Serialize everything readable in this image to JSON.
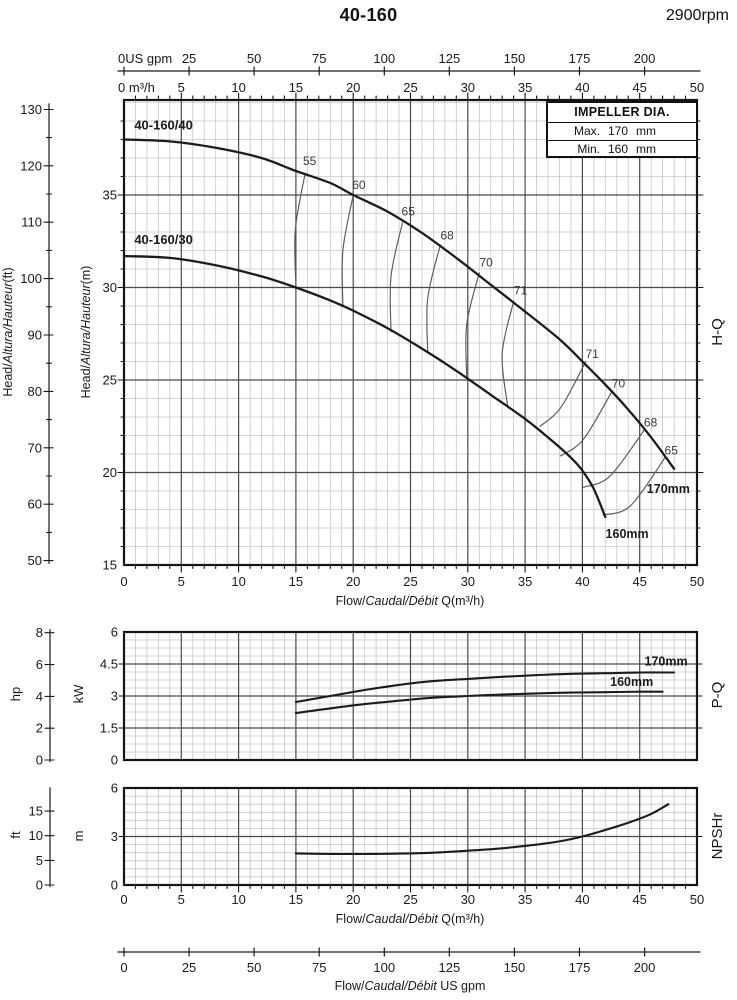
{
  "header": {
    "title": "40-160",
    "rpm": "2900rpm"
  },
  "impeller_box": {
    "title": "IMPELLER DIA.",
    "rows": [
      {
        "label": "Max.",
        "value": "170",
        "unit": "mm"
      },
      {
        "label": "Min.",
        "value": "160",
        "unit": "mm"
      }
    ]
  },
  "colors": {
    "text": "#1a1a1a",
    "curve": "#1c1c1c",
    "grid_major": "#4a4a4a",
    "grid_minor": "#c6c6c6",
    "border": "#141414",
    "contour": "#5a5a5a",
    "eff_label": "#3c3c3c"
  },
  "chart_data": {
    "type": "line",
    "flow_x": {
      "min": 0,
      "max": 50,
      "minor_step": 1,
      "major_ticks": [
        0,
        5,
        10,
        15,
        20,
        25,
        30,
        35,
        40,
        45,
        50
      ],
      "m3h_unit": "m³/h",
      "title_parts": {
        "plain": "Flow/",
        "italic": "Caudal/Débit",
        "suffix": " Q(m³/h)"
      },
      "gpm": {
        "ticks": [
          0,
          25,
          50,
          75,
          100,
          125,
          150,
          175,
          200
        ],
        "zero_label": "0US gpm",
        "title_parts": {
          "plain": "Flow/",
          "italic": "Caudal/Débit",
          "suffix": "  US gpm"
        }
      }
    },
    "hq": {
      "right_label": "H-Q",
      "y_m": {
        "min": 15,
        "max": 40.14,
        "ticks": [
          15,
          20,
          25,
          30,
          35
        ],
        "minor_step": 1,
        "title": {
          "plain": "Head/",
          "italic": "Altura/Hauteur",
          "suffix": "(m)"
        }
      },
      "y_ft": {
        "ticks": [
          50,
          60,
          70,
          80,
          90,
          100,
          110,
          120,
          130
        ],
        "minor_step": 5,
        "title": {
          "plain": "Head/",
          "italic": "Altura/Hauteur",
          "suffix": "(ft)"
        }
      },
      "series": [
        {
          "name": "40-160/40",
          "impeller": "170mm",
          "points": [
            [
              0,
              38.0
            ],
            [
              4,
              37.9
            ],
            [
              8,
              37.55
            ],
            [
              12,
              37.0
            ],
            [
              15,
              36.3
            ],
            [
              18,
              35.65
            ],
            [
              20,
              35.0
            ],
            [
              23,
              34.1
            ],
            [
              26,
              32.95
            ],
            [
              29,
              31.6
            ],
            [
              32,
              30.15
            ],
            [
              35,
              28.7
            ],
            [
              38,
              27.2
            ],
            [
              40,
              26.0
            ],
            [
              42,
              24.75
            ],
            [
              44,
              23.4
            ],
            [
              46,
              21.9
            ],
            [
              48,
              20.2
            ]
          ]
        },
        {
          "name": "40-160/30",
          "impeller": "160mm",
          "points": [
            [
              0,
              31.7
            ],
            [
              4,
              31.6
            ],
            [
              8,
              31.2
            ],
            [
              12,
              30.6
            ],
            [
              15,
              30.0
            ],
            [
              18,
              29.3
            ],
            [
              20,
              28.75
            ],
            [
              23,
              27.8
            ],
            [
              26,
              26.7
            ],
            [
              29,
              25.5
            ],
            [
              32,
              24.2
            ],
            [
              35,
              22.9
            ],
            [
              37,
              21.9
            ],
            [
              39,
              20.8
            ],
            [
              40,
              20.1
            ],
            [
              41,
              19.1
            ],
            [
              42,
              17.6
            ]
          ]
        }
      ],
      "series_name_labels": [
        {
          "text": "40-160/40",
          "x": 0.9,
          "y": 38.55
        },
        {
          "text": "40-160/30",
          "x": 0.9,
          "y": 32.35
        }
      ],
      "impeller_labels": [
        {
          "text": "170mm",
          "x": 47.5,
          "y": 18.9
        },
        {
          "text": "160mm",
          "x": 43.9,
          "y": 16.45
        }
      ],
      "efficiency_contours": [
        {
          "label": "55",
          "label_x": 16.2,
          "label_y": 36.85,
          "points": [
            [
              15.8,
              36.15
            ],
            [
              14.95,
              33.1
            ],
            [
              15.0,
              30.05
            ]
          ]
        },
        {
          "label": "60",
          "label_x": 20.5,
          "label_y": 35.55,
          "points": [
            [
              20.0,
              35.0
            ],
            [
              19.1,
              32.0
            ],
            [
              19.1,
              28.95
            ]
          ]
        },
        {
          "label": "65",
          "label_x": 24.8,
          "label_y": 34.1,
          "points": [
            [
              24.3,
              33.5
            ],
            [
              23.3,
              30.6
            ],
            [
              23.3,
              27.6
            ]
          ]
        },
        {
          "label": "68",
          "label_x": 28.2,
          "label_y": 32.8,
          "points": [
            [
              27.6,
              32.3
            ],
            [
              26.5,
              29.4
            ],
            [
              26.5,
              26.5
            ]
          ]
        },
        {
          "label": "70",
          "label_x": 31.6,
          "label_y": 31.35,
          "points": [
            [
              31.0,
              30.8
            ],
            [
              29.9,
              28.0
            ],
            [
              29.9,
              25.2
            ]
          ]
        },
        {
          "label": "71",
          "label_x": 34.6,
          "label_y": 29.85,
          "points": [
            [
              34.0,
              29.25
            ],
            [
              33.0,
              26.4
            ],
            [
              33.5,
              23.5
            ]
          ]
        },
        {
          "label": "71",
          "label_x": 40.85,
          "label_y": 26.4,
          "points": [
            [
              40.3,
              26.0
            ],
            [
              38.1,
              23.5
            ],
            [
              36.3,
              22.5
            ]
          ]
        },
        {
          "label": "70",
          "label_x": 43.15,
          "label_y": 24.8,
          "points": [
            [
              42.6,
              24.4
            ],
            [
              40.1,
              21.8
            ],
            [
              38.1,
              20.9
            ]
          ]
        },
        {
          "label": "68",
          "label_x": 45.95,
          "label_y": 22.7,
          "points": [
            [
              45.4,
              22.3
            ],
            [
              42.4,
              19.8
            ],
            [
              40.1,
              19.2
            ]
          ]
        },
        {
          "label": "65",
          "label_x": 47.75,
          "label_y": 21.2,
          "points": [
            [
              47.2,
              20.8
            ],
            [
              44.2,
              18.2
            ],
            [
              41.8,
              17.7
            ]
          ]
        }
      ]
    },
    "pq": {
      "right_label": "P-Q",
      "y_kw": {
        "ticks": [
          0,
          1.5,
          3,
          4.5,
          6
        ],
        "max": 6,
        "minor_step": 0.375,
        "unit": "kW"
      },
      "y_hp": {
        "ticks": [
          0,
          2,
          4,
          6,
          8
        ],
        "unit": "hp"
      },
      "series": [
        {
          "impeller": "170mm",
          "points": [
            [
              15,
              2.72
            ],
            [
              18,
              3.0
            ],
            [
              21,
              3.28
            ],
            [
              24,
              3.52
            ],
            [
              27,
              3.7
            ],
            [
              30,
              3.8
            ],
            [
              33,
              3.9
            ],
            [
              36,
              3.98
            ],
            [
              39,
              4.04
            ],
            [
              42,
              4.07
            ],
            [
              45,
              4.1
            ],
            [
              48,
              4.1
            ]
          ]
        },
        {
          "impeller": "160mm",
          "points": [
            [
              15,
              2.2
            ],
            [
              18,
              2.42
            ],
            [
              21,
              2.62
            ],
            [
              24,
              2.78
            ],
            [
              27,
              2.92
            ],
            [
              30,
              3.0
            ],
            [
              33,
              3.07
            ],
            [
              36,
              3.12
            ],
            [
              39,
              3.16
            ],
            [
              42,
              3.18
            ],
            [
              45,
              3.2
            ],
            [
              47,
              3.2
            ]
          ]
        }
      ],
      "impeller_labels": [
        {
          "text": "170mm",
          "x": 47.3,
          "y": 4.42
        },
        {
          "text": "160mm",
          "x": 44.3,
          "y": 3.47
        }
      ]
    },
    "npshr": {
      "right_label": "NPSHr",
      "y_m": {
        "ticks": [
          0,
          3,
          6
        ],
        "max": 6,
        "minor_step": 0.5,
        "unit": "m"
      },
      "y_ft": {
        "ticks": [
          0,
          5,
          10,
          15
        ],
        "unit": "ft"
      },
      "series": [
        {
          "name": "NPSHr",
          "points": [
            [
              15,
              1.95
            ],
            [
              18,
              1.92
            ],
            [
              21,
              1.92
            ],
            [
              24,
              1.94
            ],
            [
              27,
              2.0
            ],
            [
              30,
              2.12
            ],
            [
              33,
              2.27
            ],
            [
              36,
              2.5
            ],
            [
              38,
              2.7
            ],
            [
              40,
              3.0
            ],
            [
              42,
              3.4
            ],
            [
              44,
              3.85
            ],
            [
              46,
              4.4
            ],
            [
              47.5,
              5.0
            ]
          ]
        }
      ]
    }
  }
}
